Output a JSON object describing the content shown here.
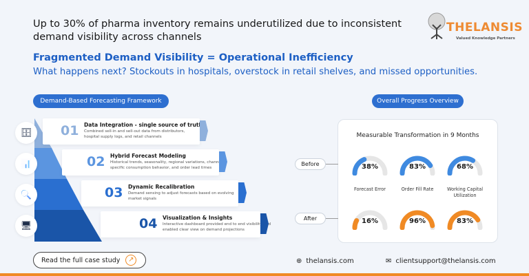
{
  "header": {
    "headline": "Up to 30% of pharma inventory remains underutilized due to inconsistent demand visibility across channels",
    "subheading": "Fragmented Demand Visibility = Operational Inefficiency",
    "tagline": "What happens next? Stockouts in hospitals, overstock in retail shelves, and missed opportunities."
  },
  "logo": {
    "name": "THELANSIS",
    "slogan": "Valued Knowledge Partners"
  },
  "framework": {
    "title": "Demand-Based Forecasting Framework",
    "steps": [
      {
        "num": "01",
        "title": "Data Integration - single source of truth",
        "desc": "Combined sell-in and sell-out data from distributors, hospital supply logs, and retail channels",
        "color": "#8fb0dc"
      },
      {
        "num": "02",
        "title": "Hybrid Forecast Modeling",
        "desc": "Historical trends, seasonality, regional variations, channel-specific consumption behavior, and order lead times",
        "color": "#5b95e0"
      },
      {
        "num": "03",
        "title": "Dynamic Recalibration",
        "desc": "Demand sensing to adjust forecasts based on evolving market signals",
        "color": "#2a6fd0"
      },
      {
        "num": "04",
        "title": "Visualization & Insights",
        "desc": "Interactive dashboard provided end to end visibility and enabled clear view on demand projections",
        "color": "#1a55a8"
      }
    ]
  },
  "progress": {
    "title": "Overall Progress Overview",
    "panel_title": "Measurable Transformation in 9 Months",
    "before_label": "Before",
    "after_label": "After",
    "metrics": [
      {
        "label": "Forecast Error",
        "before": 38,
        "after": 16,
        "before_text": "38%",
        "after_text": "16%"
      },
      {
        "label": "Order Fill Rate",
        "before": 83,
        "after": 96,
        "before_text": "83%",
        "after_text": "96%"
      },
      {
        "label": "Working Capital Utilization",
        "before": 68,
        "after": 83,
        "before_text": "68%",
        "after_text": "83%"
      }
    ],
    "colors": {
      "before": "#3f8ae0",
      "after": "#f08a24",
      "track": "#e6e6e6"
    }
  },
  "footer": {
    "cta": "Read the full case study",
    "website": "thelansis.com",
    "email": "clientsupport@thelansis.com"
  }
}
